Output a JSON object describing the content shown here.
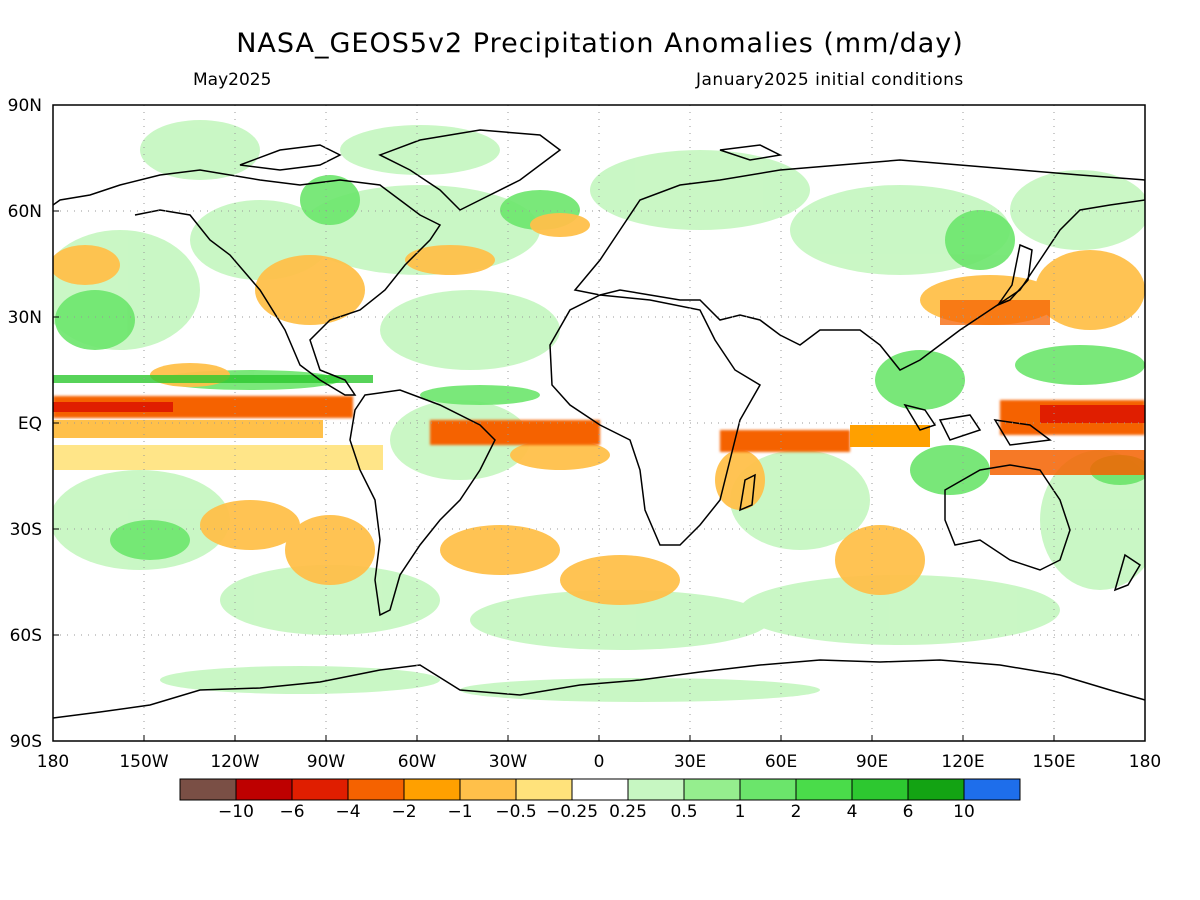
{
  "title": "NASA_GEOS5v2 Precipitation Anomalies (mm/day)",
  "subtitle_left": "May2025",
  "subtitle_right": "January2025 initial conditions",
  "map": {
    "projection": "equirectangular",
    "lon_range": [
      -180,
      180
    ],
    "lat_range": [
      -90,
      90
    ],
    "grid": true,
    "x_ticks": [
      "180",
      "150W",
      "120W",
      "90W",
      "60W",
      "30W",
      "0",
      "30E",
      "60E",
      "90E",
      "120E",
      "150E",
      "180"
    ],
    "y_ticks": [
      "90N",
      "60N",
      "30N",
      "EQ",
      "30S",
      "60S",
      "90S"
    ]
  },
  "colorbar": {
    "labels": [
      "-10",
      "-6",
      "-4",
      "-2",
      "-1",
      "-0.5",
      "-0.25",
      "0.25",
      "0.5",
      "1",
      "2",
      "4",
      "6",
      "10"
    ],
    "colors": [
      "#7a4f45",
      "#be0000",
      "#e01e00",
      "#f56200",
      "#ffa000",
      "#ffc04a",
      "#ffe27b",
      "#ffffff",
      "#c7f7c2",
      "#95ee8e",
      "#6be56b",
      "#4adc4a",
      "#2dc830",
      "#13a313",
      "#1e6eeb"
    ]
  }
}
